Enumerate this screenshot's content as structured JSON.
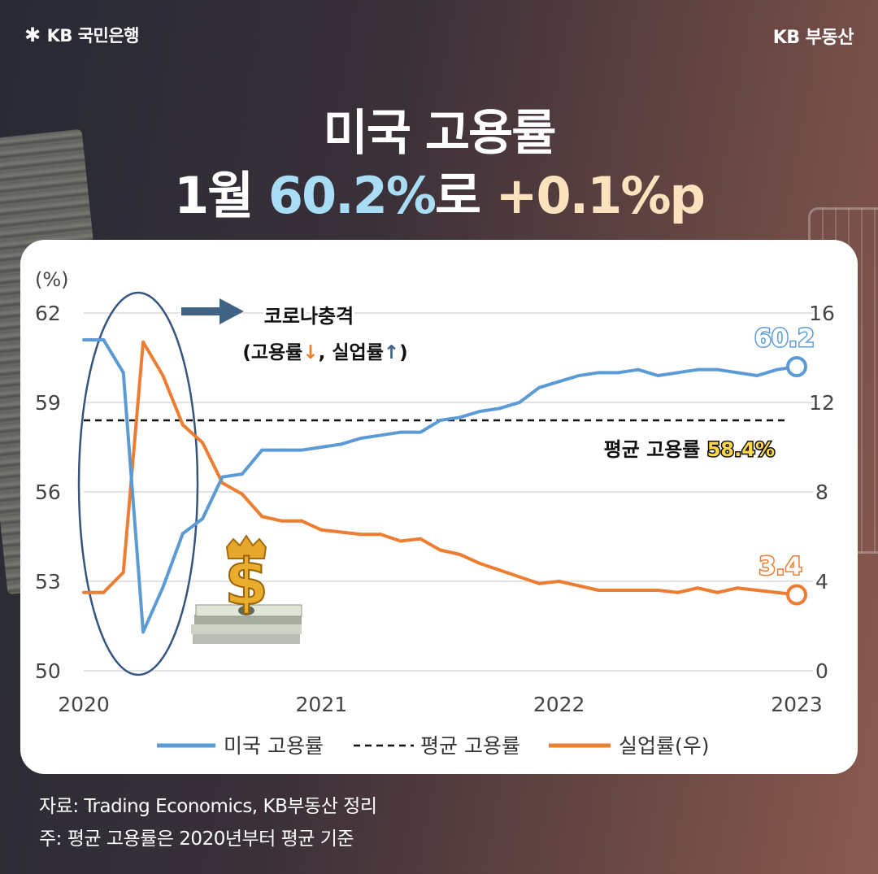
{
  "header": {
    "brand_left": "KB 국민은행",
    "brand_right": "KB 부동산",
    "logo_icon": "kb-star-icon"
  },
  "headline": {
    "line1": "미국 고용률",
    "line2_prefix": "1월 ",
    "line2_value": "60.2%",
    "line2_mid": "로 ",
    "line2_change": "+0.1%p"
  },
  "chart_data": {
    "type": "line",
    "y_left_unit": "(%)",
    "y_left_ticks": [
      "62",
      "59",
      "56",
      "53",
      "50"
    ],
    "y_left_range": [
      50,
      62
    ],
    "y_right_ticks": [
      "16",
      "12",
      "8",
      "4",
      "0"
    ],
    "y_right_range": [
      0,
      16
    ],
    "x_ticks": [
      "2020",
      "2021",
      "2022",
      "2023"
    ],
    "grid": true,
    "legend_position": "bottom",
    "series": [
      {
        "name": "미국 고용률",
        "axis": "left",
        "color": "#5b9bd5",
        "x": [
          "2020-01",
          "2020-02",
          "2020-03",
          "2020-04",
          "2020-05",
          "2020-06",
          "2020-07",
          "2020-08",
          "2020-09",
          "2020-10",
          "2020-11",
          "2020-12",
          "2021-01",
          "2021-02",
          "2021-03",
          "2021-04",
          "2021-05",
          "2021-06",
          "2021-07",
          "2021-08",
          "2021-09",
          "2021-10",
          "2021-11",
          "2021-12",
          "2022-01",
          "2022-02",
          "2022-03",
          "2022-04",
          "2022-05",
          "2022-06",
          "2022-07",
          "2022-08",
          "2022-09",
          "2022-10",
          "2022-11",
          "2022-12",
          "2023-01"
        ],
        "values": [
          61.1,
          61.1,
          60.0,
          51.3,
          52.8,
          54.6,
          55.1,
          56.5,
          56.6,
          57.4,
          57.4,
          57.4,
          57.5,
          57.6,
          57.8,
          57.9,
          58.0,
          58.0,
          58.4,
          58.5,
          58.7,
          58.8,
          59.0,
          59.5,
          59.7,
          59.9,
          60.0,
          60.0,
          60.1,
          59.9,
          60.0,
          60.1,
          60.1,
          60.0,
          59.9,
          60.1,
          60.2
        ],
        "end_label": "60.2"
      },
      {
        "name": "평균 고용률",
        "axis": "left",
        "style": "dashed",
        "color": "#111111",
        "value": 58.4,
        "label": "평균 고용률",
        "label_value": "58.4%"
      },
      {
        "name": "실업률(우)",
        "axis": "right",
        "color": "#ed7d31",
        "x": [
          "2020-01",
          "2020-02",
          "2020-03",
          "2020-04",
          "2020-05",
          "2020-06",
          "2020-07",
          "2020-08",
          "2020-09",
          "2020-10",
          "2020-11",
          "2020-12",
          "2021-01",
          "2021-02",
          "2021-03",
          "2021-04",
          "2021-05",
          "2021-06",
          "2021-07",
          "2021-08",
          "2021-09",
          "2021-10",
          "2021-11",
          "2021-12",
          "2022-01",
          "2022-02",
          "2022-03",
          "2022-04",
          "2022-05",
          "2022-06",
          "2022-07",
          "2022-08",
          "2022-09",
          "2022-10",
          "2022-11",
          "2022-12",
          "2023-01"
        ],
        "values": [
          3.5,
          3.5,
          4.4,
          14.7,
          13.2,
          11.0,
          10.2,
          8.4,
          7.9,
          6.9,
          6.7,
          6.7,
          6.3,
          6.2,
          6.1,
          6.1,
          5.8,
          5.9,
          5.4,
          5.2,
          4.8,
          4.5,
          4.2,
          3.9,
          4.0,
          3.8,
          3.6,
          3.6,
          3.6,
          3.6,
          3.5,
          3.7,
          3.5,
          3.7,
          3.6,
          3.5,
          3.4
        ],
        "end_label": "3.4"
      }
    ],
    "annotation": {
      "title": "코로나충격",
      "detail_prefix": "(고용률",
      "down_arrow": "↓",
      "detail_mid": ", 실업률",
      "up_arrow": "↑",
      "detail_suffix": ")"
    }
  },
  "legend": {
    "employment": "미국 고용률",
    "average": "평균 고용률",
    "unemployment": "실업률(우)"
  },
  "footer": {
    "source": "자료: Trading Economics, KB부동산 정리",
    "note": "주: 평균 고용률은 2020년부터 평균 기준"
  },
  "colors": {
    "employment_line": "#5b9bd5",
    "unemployment_line": "#ed7d31",
    "ellipse": "#35557e",
    "arrow": "#3e6384",
    "highlight_yellow": "#ffd84d",
    "headline_blue": "#a9dcf5",
    "headline_cream": "#fde3bd"
  }
}
